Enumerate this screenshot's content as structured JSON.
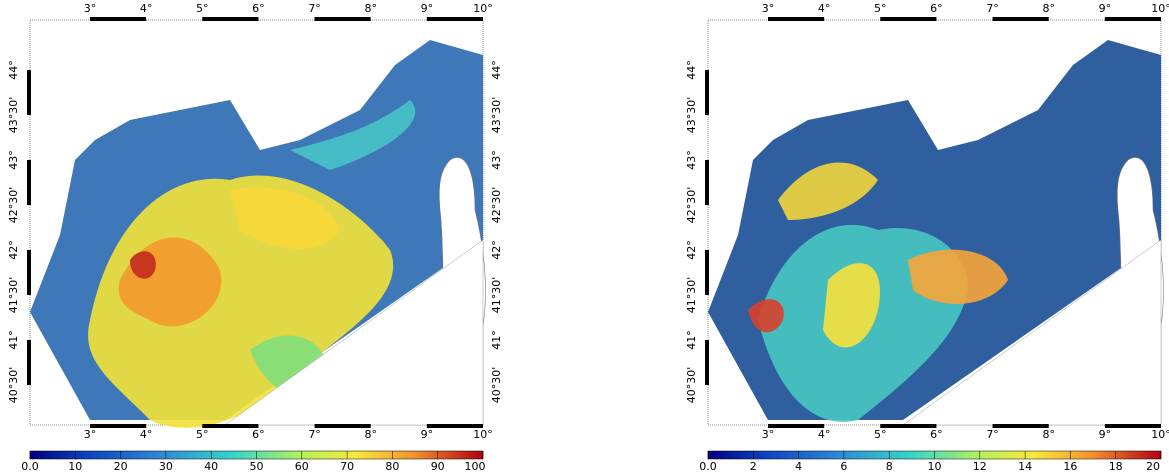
{
  "lon_labels": [
    "3°",
    "4°",
    "5°",
    "6°",
    "7°",
    "8°",
    "9°",
    "10°"
  ],
  "lat_labels": [
    "40°30'",
    "41°",
    "41°30'",
    "42°",
    "42°30'",
    "43°",
    "43°30'",
    "44°"
  ],
  "panels": [
    {
      "colorbar": {
        "lim": [
          0,
          100
        ],
        "ticks": [
          {
            "value": 0,
            "label": "0.0"
          },
          10,
          20,
          30,
          40,
          50,
          60,
          70,
          80,
          90,
          100
        ]
      }
    },
    {
      "colorbar": {
        "lim": [
          0,
          20
        ],
        "ticks": [
          {
            "value": 0,
            "label": "0.0"
          },
          2,
          4,
          6,
          8,
          10,
          12,
          14,
          16,
          18,
          20
        ]
      }
    }
  ]
}
